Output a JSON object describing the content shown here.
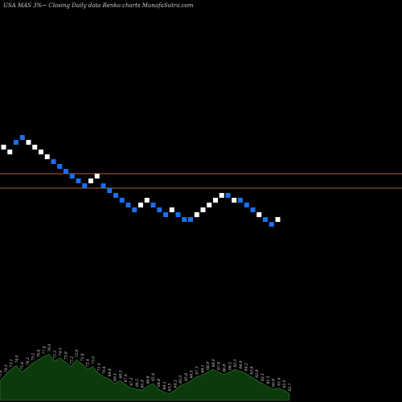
{
  "header": {
    "title": "USA MAS 3%~  Closing Daily data  Renko  charts MunafaSutra.com"
  },
  "colors": {
    "background": "#000000",
    "up_brick": "#ffffff",
    "down_brick": "#1a6ff0",
    "level_line": "#b5651d",
    "volume_fill": "#0c3a0c",
    "volume_line": "#2e8b2e"
  },
  "chart_data": {
    "type": "renko",
    "brick_direction": [
      "up",
      "up",
      "down",
      "down",
      "up",
      "up",
      "up",
      "up",
      "down",
      "down",
      "down",
      "down",
      "down",
      "down",
      "up",
      "up",
      "down",
      "down",
      "down",
      "down",
      "down",
      "down",
      "up",
      "up",
      "down",
      "down",
      "down",
      "up",
      "down",
      "down",
      "down",
      "up",
      "up",
      "up",
      "up",
      "up",
      "down",
      "up",
      "down",
      "down",
      "down",
      "up",
      "down",
      "down",
      "up"
    ],
    "brick_value_rows": [
      12,
      11,
      13,
      14,
      13,
      12,
      11,
      10,
      9,
      8,
      7,
      6,
      5,
      4,
      5,
      6,
      4,
      3,
      2,
      1,
      0,
      -1,
      0,
      1,
      0,
      -1,
      -2,
      -1,
      -2,
      -3,
      -3,
      -2,
      -1,
      0,
      1,
      2,
      2,
      1,
      1,
      0,
      -1,
      -2,
      -3,
      -4,
      -3
    ],
    "volume_labels": [
      "75.8",
      "74.3",
      "73.1",
      "74.0",
      "75.6",
      "76.2",
      "75.1",
      "76.8",
      "77.4",
      "76.0",
      "75.3",
      "74.5",
      "73.9",
      "73.2",
      "72.6",
      "71.8",
      "72.4",
      "73.0",
      "71.5",
      "70.6",
      "69.8",
      "69.1",
      "68.5",
      "67.9",
      "67.2",
      "66.5",
      "65.9",
      "66.8",
      "65.4",
      "64.8",
      "64.1",
      "63.5",
      "64.2",
      "65.0",
      "65.8",
      "66.5",
      "67.3",
      "68.1",
      "68.9",
      "68.0",
      "67.4",
      "66.8",
      "66.1",
      "65.5",
      "64.9",
      "64.2",
      "63.6",
      "62.8",
      "62.1",
      "61.5",
      "60.8",
      "61.4",
      "62.0",
      "62.7"
    ],
    "volume_values": [
      0.35,
      0.45,
      0.55,
      0.62,
      0.5,
      0.58,
      0.66,
      0.72,
      0.78,
      0.82,
      0.7,
      0.75,
      0.68,
      0.6,
      0.72,
      0.65,
      0.55,
      0.6,
      0.48,
      0.42,
      0.38,
      0.3,
      0.35,
      0.28,
      0.22,
      0.2,
      0.18,
      0.25,
      0.3,
      0.2,
      0.15,
      0.12,
      0.18,
      0.26,
      0.3,
      0.35,
      0.42,
      0.45,
      0.5,
      0.55,
      0.5,
      0.46,
      0.5,
      0.55,
      0.52,
      0.48,
      0.42,
      0.36,
      0.3,
      0.25,
      0.2,
      0.22,
      0.18,
      0.12
    ],
    "level_lines": [
      "upper",
      "lower"
    ]
  }
}
